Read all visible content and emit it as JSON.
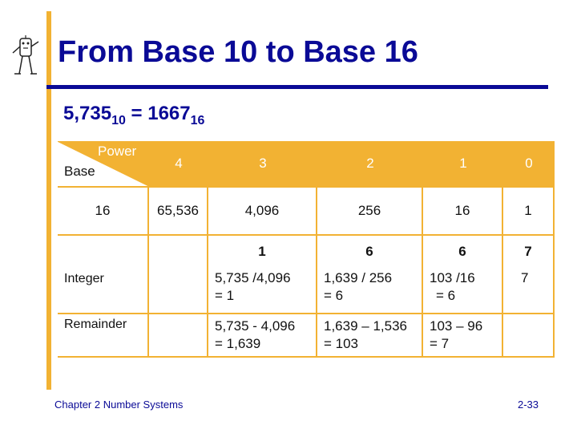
{
  "title": "From Base 10 to Base 16",
  "equation": {
    "lhs": "5,735",
    "lhs_base": "10",
    "op": " = ",
    "rhs": "1667",
    "rhs_base": "16"
  },
  "table": {
    "corner_top": "Power",
    "corner_bottom": "Base",
    "powers": [
      "4",
      "3",
      "2",
      "1",
      "0"
    ],
    "base": "16",
    "place_values": [
      "65,536",
      "4,096",
      "256",
      "16",
      "1"
    ],
    "digits": [
      "",
      "1",
      "6",
      "6",
      "7"
    ],
    "integer_label": "Integer",
    "integer_row": [
      "",
      [
        "5,735 /4,096",
        "= 1"
      ],
      [
        "1,639 / 256",
        "= 6"
      ],
      [
        "103 /16",
        "= 6"
      ],
      [
        "7",
        ""
      ]
    ],
    "remainder_label": "Remainder",
    "remainder_row": [
      "",
      [
        "5,735 - 4,096",
        "= 1,639"
      ],
      [
        "1,639 – 1,536",
        "= 103"
      ],
      [
        "103 – 96",
        "= 7"
      ],
      [
        "",
        ""
      ]
    ]
  },
  "footer": {
    "left": "Chapter 2 Number Systems",
    "right": "2-33"
  },
  "colors": {
    "accent": "#f2b233",
    "title": "#0a0a96"
  },
  "icons": {
    "logo": "stick-figure-logo-icon"
  }
}
